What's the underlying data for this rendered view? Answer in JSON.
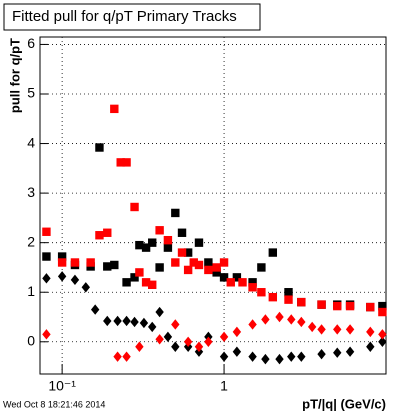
{
  "chart_data": {
    "type": "scatter",
    "title": "Fitted pull for q/pT  Primary Tracks",
    "y_label": "pull for q/pT",
    "x_label": "pT/|q| (GeV/c)",
    "footer": "Wed Oct  8 18:21:46 2014",
    "xlog": true,
    "grid": true,
    "xlim": [
      0.073,
      10
    ],
    "ylim": [
      -0.65,
      6.15
    ],
    "xticks": [
      {
        "value": 0.1,
        "label": "10⁻¹"
      },
      1
    ],
    "yticks": [
      0,
      1,
      2,
      3,
      4,
      5,
      6
    ],
    "series": [
      {
        "name": "black-squares",
        "color": "#000000",
        "marker": "square",
        "x": [
          0.08,
          0.1,
          0.12,
          0.15,
          0.17,
          0.19,
          0.21,
          0.25,
          0.28,
          0.3,
          0.33,
          0.36,
          0.4,
          0.45,
          0.5,
          0.55,
          0.6,
          0.7,
          0.8,
          0.9,
          1.0,
          1.2,
          1.5,
          1.7,
          2.0,
          2.5,
          3,
          4,
          5,
          6,
          8,
          9.5
        ],
        "values": [
          1.72,
          1.72,
          1.55,
          1.52,
          3.92,
          1.52,
          1.55,
          1.2,
          1.3,
          1.95,
          1.9,
          2.0,
          1.5,
          1.9,
          2.6,
          2.2,
          1.8,
          2.0,
          1.6,
          1.4,
          1.3,
          1.3,
          1.2,
          1.5,
          1.8,
          1.0,
          0.8,
          0.75,
          0.75,
          0.75,
          0.7,
          0.72
        ]
      },
      {
        "name": "red-squares",
        "color": "#ff0000",
        "marker": "square",
        "x": [
          0.08,
          0.1,
          0.12,
          0.15,
          0.17,
          0.19,
          0.21,
          0.23,
          0.25,
          0.28,
          0.3,
          0.33,
          0.36,
          0.4,
          0.45,
          0.5,
          0.55,
          0.6,
          0.65,
          0.7,
          0.8,
          0.9,
          1.0,
          1.1,
          1.3,
          1.5,
          1.7,
          2,
          2.5,
          3,
          4,
          5,
          6,
          8,
          9.5
        ],
        "values": [
          2.22,
          1.6,
          1.6,
          1.6,
          2.15,
          2.2,
          4.7,
          3.62,
          3.62,
          2.72,
          1.4,
          1.2,
          1.15,
          2.25,
          2.05,
          1.6,
          1.8,
          1.45,
          1.6,
          1.55,
          1.45,
          1.5,
          1.6,
          1.2,
          1.2,
          1.1,
          1.0,
          0.9,
          0.85,
          0.8,
          0.75,
          0.72,
          0.72,
          0.7,
          0.6
        ]
      },
      {
        "name": "black-diamonds",
        "color": "#000000",
        "marker": "diamond",
        "x": [
          0.08,
          0.1,
          0.12,
          0.14,
          0.16,
          0.19,
          0.22,
          0.25,
          0.28,
          0.32,
          0.36,
          0.4,
          0.45,
          0.5,
          0.6,
          0.7,
          0.8,
          1.0,
          1.2,
          1.5,
          1.8,
          2.2,
          2.6,
          3,
          4,
          5,
          6,
          8,
          9.5
        ],
        "values": [
          1.28,
          1.32,
          1.25,
          1.1,
          0.65,
          0.42,
          0.42,
          0.42,
          0.4,
          0.38,
          0.3,
          0.6,
          0.1,
          -0.1,
          -0.1,
          -0.2,
          0.1,
          -0.3,
          -0.2,
          -0.3,
          -0.35,
          -0.35,
          -0.3,
          -0.3,
          -0.25,
          -0.22,
          -0.2,
          -0.1,
          0.0
        ]
      },
      {
        "name": "red-diamonds",
        "color": "#ff0000",
        "marker": "diamond",
        "x": [
          0.08,
          0.22,
          0.25,
          0.3,
          0.4,
          0.5,
          0.6,
          0.7,
          0.8,
          1.0,
          1.2,
          1.5,
          1.8,
          2.2,
          2.6,
          3,
          3.5,
          4,
          5,
          6,
          8,
          9.5
        ],
        "values": [
          0.15,
          -0.3,
          -0.3,
          -0.1,
          0.05,
          0.35,
          0.0,
          -0.1,
          0.0,
          0.1,
          0.2,
          0.35,
          0.45,
          0.5,
          0.45,
          0.4,
          0.3,
          0.25,
          0.25,
          0.25,
          0.2,
          0.15
        ]
      }
    ]
  }
}
